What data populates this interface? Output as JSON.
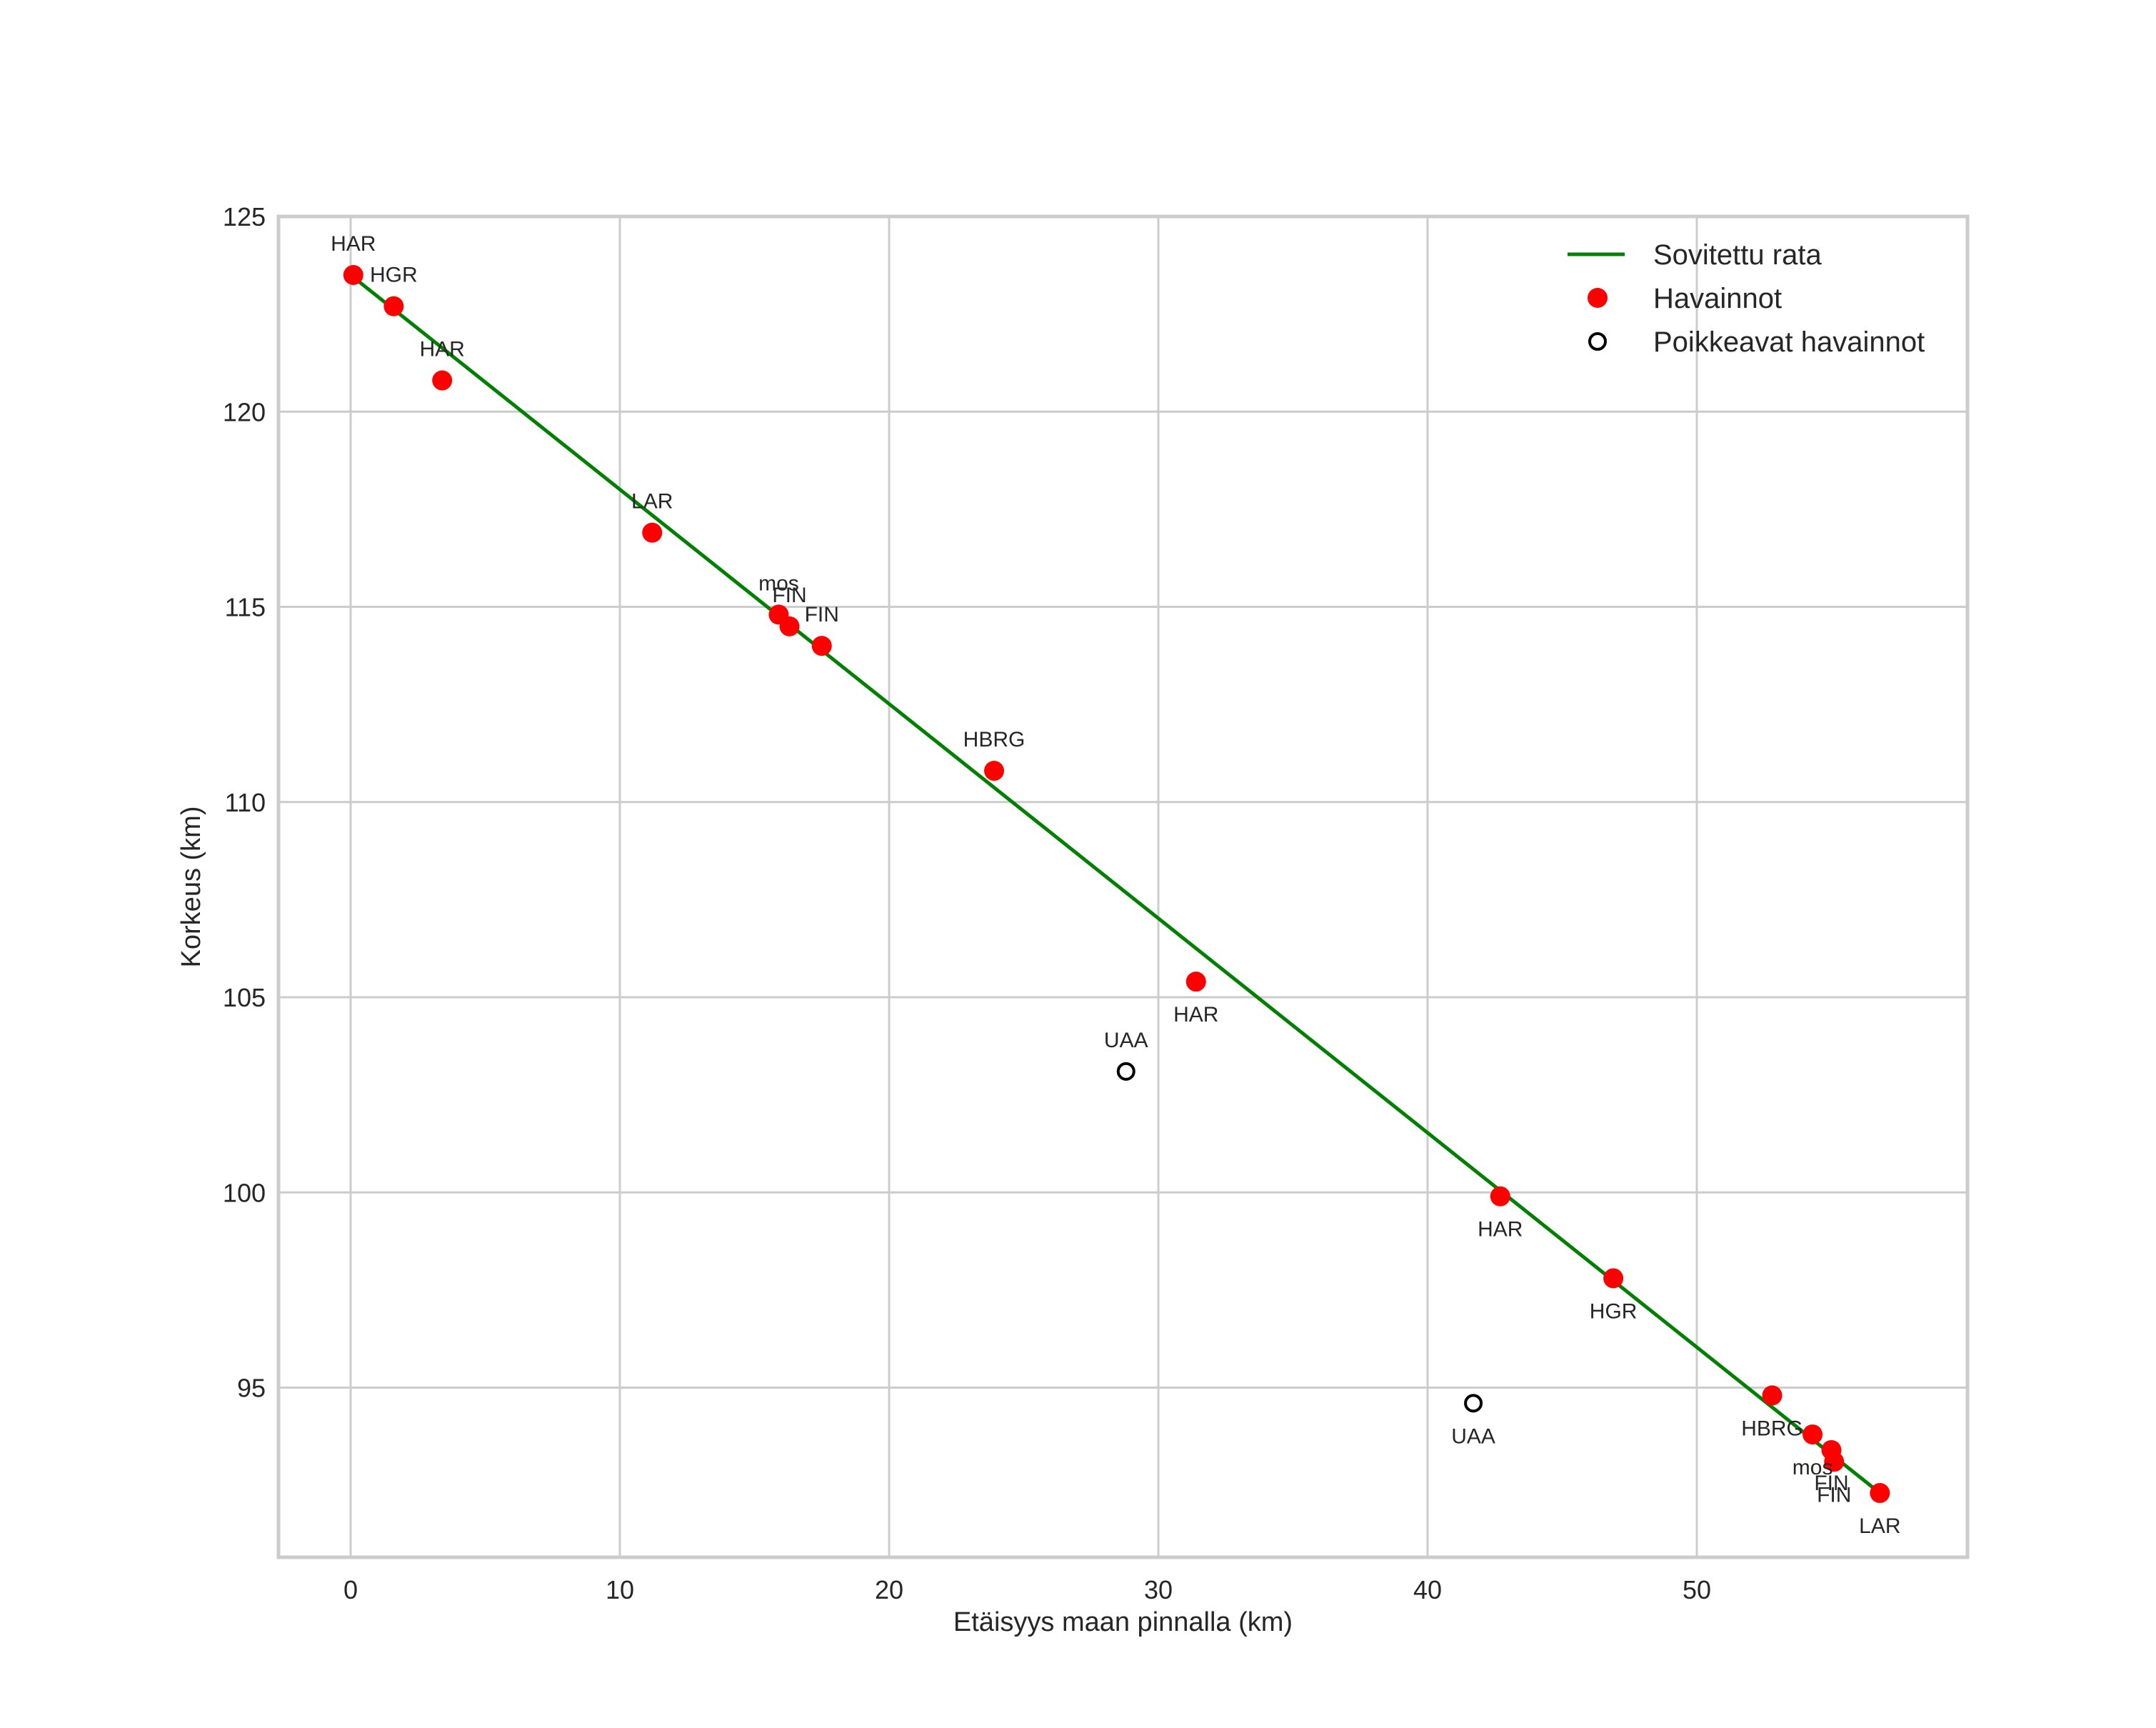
{
  "chart_data": {
    "type": "scatter",
    "title": "",
    "xlabel": "Etäisyys maan pinnalla (km)",
    "ylabel": "Korkeus (km)",
    "xlim": [
      -2.9,
      59.7
    ],
    "ylim": [
      90.7,
      125
    ],
    "xticks": [
      0,
      10,
      20,
      30,
      40,
      50
    ],
    "yticks": [
      95,
      100,
      105,
      110,
      115,
      120,
      125
    ],
    "grid": true,
    "legend_position": "upper right",
    "legend": [
      {
        "label": "Sovitettu rata",
        "kind": "line",
        "color": "#008000"
      },
      {
        "label": "Havainnot",
        "kind": "filled-marker",
        "color": "#ff0000"
      },
      {
        "label": "Poikkeavat havainnot",
        "kind": "open-marker",
        "color": "#000000"
      }
    ],
    "series": [
      {
        "name": "Sovitettu rata",
        "type": "line",
        "color": "#008000",
        "points": [
          [
            0.0,
            123.5
          ],
          [
            56.8,
            92.3
          ]
        ]
      },
      {
        "name": "Havainnot",
        "type": "scatter",
        "color": "#ff0000",
        "points": [
          {
            "x": 0.1,
            "y": 123.5,
            "label": "HAR",
            "label_pos": "above"
          },
          {
            "x": 1.6,
            "y": 122.7,
            "label": "HGR",
            "label_pos": "above"
          },
          {
            "x": 3.4,
            "y": 120.8,
            "label": "HAR",
            "label_pos": "above"
          },
          {
            "x": 11.2,
            "y": 116.9,
            "label": "LAR",
            "label_pos": "above"
          },
          {
            "x": 15.9,
            "y": 114.8,
            "label": "mos",
            "label_pos": "above"
          },
          {
            "x": 16.3,
            "y": 114.5,
            "label": "FIN",
            "label_pos": "above"
          },
          {
            "x": 17.5,
            "y": 114.0,
            "label": "FIN",
            "label_pos": "above"
          },
          {
            "x": 23.9,
            "y": 110.8,
            "label": "HBRG",
            "label_pos": "above"
          },
          {
            "x": 31.4,
            "y": 105.4,
            "label": "HAR",
            "label_pos": "below"
          },
          {
            "x": 42.7,
            "y": 99.9,
            "label": "HAR",
            "label_pos": "below"
          },
          {
            "x": 46.9,
            "y": 97.8,
            "label": "HGR",
            "label_pos": "below"
          },
          {
            "x": 52.8,
            "y": 94.8,
            "label": "HBRG",
            "label_pos": "below"
          },
          {
            "x": 54.3,
            "y": 93.8,
            "label": "mos",
            "label_pos": "below"
          },
          {
            "x": 55.0,
            "y": 93.4,
            "label": "FIN",
            "label_pos": "below"
          },
          {
            "x": 55.1,
            "y": 93.1,
            "label": "FIN",
            "label_pos": "below"
          },
          {
            "x": 56.8,
            "y": 92.3,
            "label": "LAR",
            "label_pos": "below"
          }
        ]
      },
      {
        "name": "Poikkeavat havainnot",
        "type": "scatter",
        "color": "#000000",
        "points": [
          {
            "x": 28.8,
            "y": 103.1,
            "label": "UAA",
            "label_pos": "above"
          },
          {
            "x": 41.7,
            "y": 94.6,
            "label": "UAA",
            "label_pos": "below"
          }
        ]
      }
    ]
  }
}
